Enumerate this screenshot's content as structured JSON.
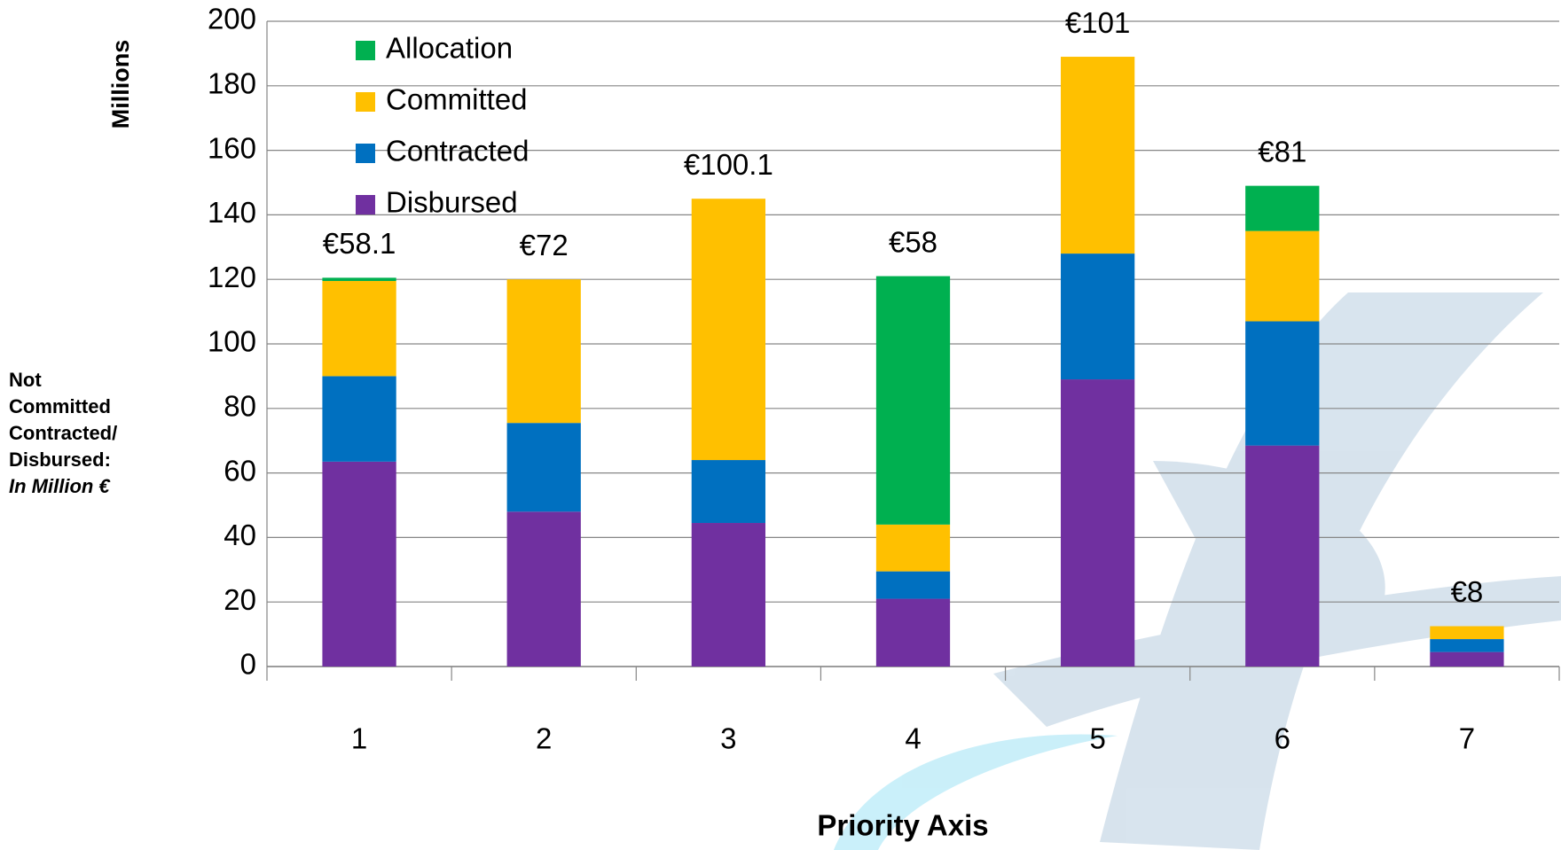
{
  "chart_data": {
    "type": "stacked_bar",
    "y_axis_title": "Millions",
    "x_axis_title": "Priority Axis",
    "side_note": [
      "Not",
      "Committed",
      "Contracted/",
      "Disbursed:",
      "In Million €"
    ],
    "categories": [
      "1",
      "2",
      "3",
      "4",
      "5",
      "6",
      "7"
    ],
    "series": [
      {
        "name": "Disbursed",
        "color": "#7030a0",
        "values": [
          63.5,
          48,
          44.5,
          21,
          89,
          68.5,
          4.5
        ]
      },
      {
        "name": "Contracted",
        "color": "#0070c0",
        "values": [
          26.5,
          27.5,
          19.5,
          8.5,
          39,
          38.5,
          4
        ]
      },
      {
        "name": "Committed",
        "color": "#ffc000",
        "values": [
          29.5,
          44.5,
          81,
          14.5,
          61,
          28,
          4
        ]
      },
      {
        "name": "Allocation",
        "color": "#00b050",
        "values": [
          1,
          0,
          0,
          77,
          0,
          14,
          0
        ]
      }
    ],
    "bar_labels": [
      "€58.1",
      "€72",
      "€100.1",
      "€58",
      "€101",
      "€81",
      "€8"
    ],
    "ylim": [
      0,
      200
    ],
    "yticks": [
      0,
      20,
      40,
      60,
      80,
      100,
      120,
      140,
      160,
      180,
      200
    ],
    "grid": true,
    "legend": "top-left"
  }
}
